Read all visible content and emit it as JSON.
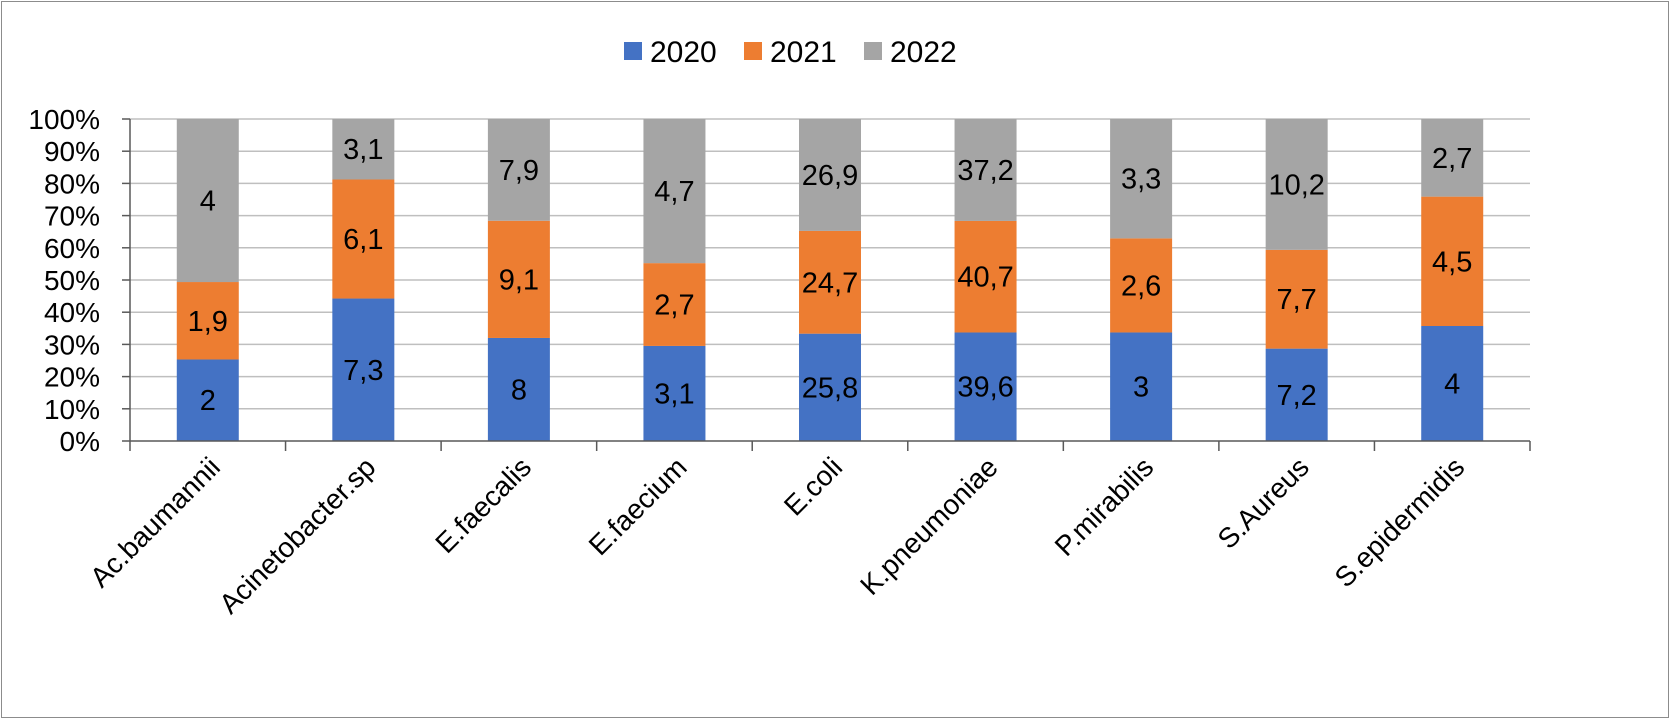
{
  "chart_data": {
    "type": "bar",
    "stacked": "percent",
    "title": "",
    "xlabel": "",
    "ylabel": "",
    "ylim": [
      0,
      100
    ],
    "yticks": [
      "0%",
      "10%",
      "20%",
      "30%",
      "40%",
      "50%",
      "60%",
      "70%",
      "80%",
      "90%",
      "100%"
    ],
    "grid": true,
    "legend_position": "top-center",
    "categories": [
      "Ac.baumannii",
      "Acinetobacter.sp",
      "E.faecalis",
      "E.faecium",
      "E.coli",
      "K.pneumoniae",
      "P.mirabilis",
      "S.Aureus",
      "S.epidermidis"
    ],
    "series": [
      {
        "name": "2020",
        "color": "#4472C4",
        "values": [
          2,
          7.3,
          8,
          3.1,
          25.8,
          39.6,
          3,
          7.2,
          4
        ],
        "labels": [
          "2",
          "7,3",
          "8",
          "3,1",
          "25,8",
          "39,6",
          "3",
          "7,2",
          "4"
        ]
      },
      {
        "name": "2021",
        "color": "#ED7D31",
        "values": [
          1.9,
          6.1,
          9.1,
          2.7,
          24.7,
          40.7,
          2.6,
          7.7,
          4.5
        ],
        "labels": [
          "1,9",
          "6,1",
          "9,1",
          "2,7",
          "24,7",
          "40,7",
          "2,6",
          "7,7",
          "4,5"
        ]
      },
      {
        "name": "2022",
        "color": "#A5A5A5",
        "values": [
          4,
          3.1,
          7.9,
          4.7,
          26.9,
          37.2,
          3.3,
          10.2,
          2.7
        ],
        "labels": [
          "4",
          "3,1",
          "7,9",
          "4,7",
          "26,9",
          "37,2",
          "3,3",
          "10,2",
          "2,7"
        ]
      }
    ]
  }
}
